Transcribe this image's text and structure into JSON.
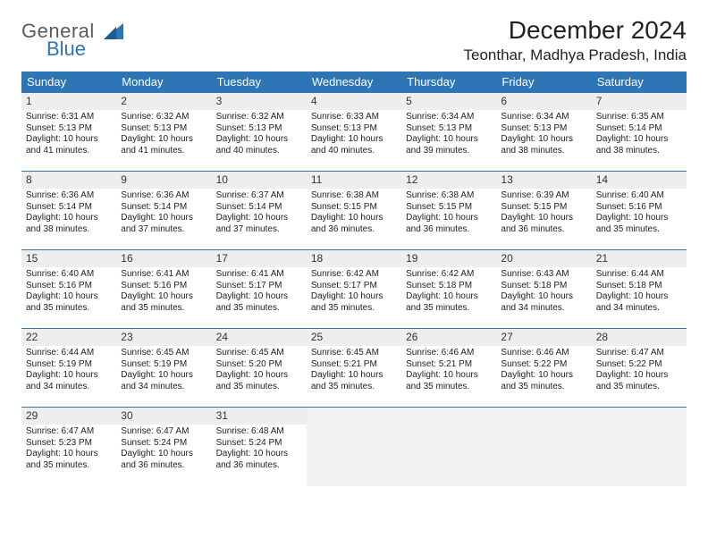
{
  "logo": {
    "text1": "General",
    "text2": "Blue"
  },
  "header": {
    "month_title": "December 2024",
    "location": "Teonthar, Madhya Pradesh, India"
  },
  "colors": {
    "header_bg": "#2e75b6",
    "header_fg": "#ffffff",
    "daynum_bg": "#eeeeee",
    "border": "#2e75b6",
    "empty_bg": "#f2f2f2"
  },
  "weekdays": [
    "Sunday",
    "Monday",
    "Tuesday",
    "Wednesday",
    "Thursday",
    "Friday",
    "Saturday"
  ],
  "weeks": [
    [
      {
        "day": "1",
        "sunrise": "Sunrise: 6:31 AM",
        "sunset": "Sunset: 5:13 PM",
        "daylight": "Daylight: 10 hours and 41 minutes."
      },
      {
        "day": "2",
        "sunrise": "Sunrise: 6:32 AM",
        "sunset": "Sunset: 5:13 PM",
        "daylight": "Daylight: 10 hours and 41 minutes."
      },
      {
        "day": "3",
        "sunrise": "Sunrise: 6:32 AM",
        "sunset": "Sunset: 5:13 PM",
        "daylight": "Daylight: 10 hours and 40 minutes."
      },
      {
        "day": "4",
        "sunrise": "Sunrise: 6:33 AM",
        "sunset": "Sunset: 5:13 PM",
        "daylight": "Daylight: 10 hours and 40 minutes."
      },
      {
        "day": "5",
        "sunrise": "Sunrise: 6:34 AM",
        "sunset": "Sunset: 5:13 PM",
        "daylight": "Daylight: 10 hours and 39 minutes."
      },
      {
        "day": "6",
        "sunrise": "Sunrise: 6:34 AM",
        "sunset": "Sunset: 5:13 PM",
        "daylight": "Daylight: 10 hours and 38 minutes."
      },
      {
        "day": "7",
        "sunrise": "Sunrise: 6:35 AM",
        "sunset": "Sunset: 5:14 PM",
        "daylight": "Daylight: 10 hours and 38 minutes."
      }
    ],
    [
      {
        "day": "8",
        "sunrise": "Sunrise: 6:36 AM",
        "sunset": "Sunset: 5:14 PM",
        "daylight": "Daylight: 10 hours and 38 minutes."
      },
      {
        "day": "9",
        "sunrise": "Sunrise: 6:36 AM",
        "sunset": "Sunset: 5:14 PM",
        "daylight": "Daylight: 10 hours and 37 minutes."
      },
      {
        "day": "10",
        "sunrise": "Sunrise: 6:37 AM",
        "sunset": "Sunset: 5:14 PM",
        "daylight": "Daylight: 10 hours and 37 minutes."
      },
      {
        "day": "11",
        "sunrise": "Sunrise: 6:38 AM",
        "sunset": "Sunset: 5:15 PM",
        "daylight": "Daylight: 10 hours and 36 minutes."
      },
      {
        "day": "12",
        "sunrise": "Sunrise: 6:38 AM",
        "sunset": "Sunset: 5:15 PM",
        "daylight": "Daylight: 10 hours and 36 minutes."
      },
      {
        "day": "13",
        "sunrise": "Sunrise: 6:39 AM",
        "sunset": "Sunset: 5:15 PM",
        "daylight": "Daylight: 10 hours and 36 minutes."
      },
      {
        "day": "14",
        "sunrise": "Sunrise: 6:40 AM",
        "sunset": "Sunset: 5:16 PM",
        "daylight": "Daylight: 10 hours and 35 minutes."
      }
    ],
    [
      {
        "day": "15",
        "sunrise": "Sunrise: 6:40 AM",
        "sunset": "Sunset: 5:16 PM",
        "daylight": "Daylight: 10 hours and 35 minutes."
      },
      {
        "day": "16",
        "sunrise": "Sunrise: 6:41 AM",
        "sunset": "Sunset: 5:16 PM",
        "daylight": "Daylight: 10 hours and 35 minutes."
      },
      {
        "day": "17",
        "sunrise": "Sunrise: 6:41 AM",
        "sunset": "Sunset: 5:17 PM",
        "daylight": "Daylight: 10 hours and 35 minutes."
      },
      {
        "day": "18",
        "sunrise": "Sunrise: 6:42 AM",
        "sunset": "Sunset: 5:17 PM",
        "daylight": "Daylight: 10 hours and 35 minutes."
      },
      {
        "day": "19",
        "sunrise": "Sunrise: 6:42 AM",
        "sunset": "Sunset: 5:18 PM",
        "daylight": "Daylight: 10 hours and 35 minutes."
      },
      {
        "day": "20",
        "sunrise": "Sunrise: 6:43 AM",
        "sunset": "Sunset: 5:18 PM",
        "daylight": "Daylight: 10 hours and 34 minutes."
      },
      {
        "day": "21",
        "sunrise": "Sunrise: 6:44 AM",
        "sunset": "Sunset: 5:18 PM",
        "daylight": "Daylight: 10 hours and 34 minutes."
      }
    ],
    [
      {
        "day": "22",
        "sunrise": "Sunrise: 6:44 AM",
        "sunset": "Sunset: 5:19 PM",
        "daylight": "Daylight: 10 hours and 34 minutes."
      },
      {
        "day": "23",
        "sunrise": "Sunrise: 6:45 AM",
        "sunset": "Sunset: 5:19 PM",
        "daylight": "Daylight: 10 hours and 34 minutes."
      },
      {
        "day": "24",
        "sunrise": "Sunrise: 6:45 AM",
        "sunset": "Sunset: 5:20 PM",
        "daylight": "Daylight: 10 hours and 35 minutes."
      },
      {
        "day": "25",
        "sunrise": "Sunrise: 6:45 AM",
        "sunset": "Sunset: 5:21 PM",
        "daylight": "Daylight: 10 hours and 35 minutes."
      },
      {
        "day": "26",
        "sunrise": "Sunrise: 6:46 AM",
        "sunset": "Sunset: 5:21 PM",
        "daylight": "Daylight: 10 hours and 35 minutes."
      },
      {
        "day": "27",
        "sunrise": "Sunrise: 6:46 AM",
        "sunset": "Sunset: 5:22 PM",
        "daylight": "Daylight: 10 hours and 35 minutes."
      },
      {
        "day": "28",
        "sunrise": "Sunrise: 6:47 AM",
        "sunset": "Sunset: 5:22 PM",
        "daylight": "Daylight: 10 hours and 35 minutes."
      }
    ],
    [
      {
        "day": "29",
        "sunrise": "Sunrise: 6:47 AM",
        "sunset": "Sunset: 5:23 PM",
        "daylight": "Daylight: 10 hours and 35 minutes."
      },
      {
        "day": "30",
        "sunrise": "Sunrise: 6:47 AM",
        "sunset": "Sunset: 5:24 PM",
        "daylight": "Daylight: 10 hours and 36 minutes."
      },
      {
        "day": "31",
        "sunrise": "Sunrise: 6:48 AM",
        "sunset": "Sunset: 5:24 PM",
        "daylight": "Daylight: 10 hours and 36 minutes."
      },
      null,
      null,
      null,
      null
    ]
  ]
}
